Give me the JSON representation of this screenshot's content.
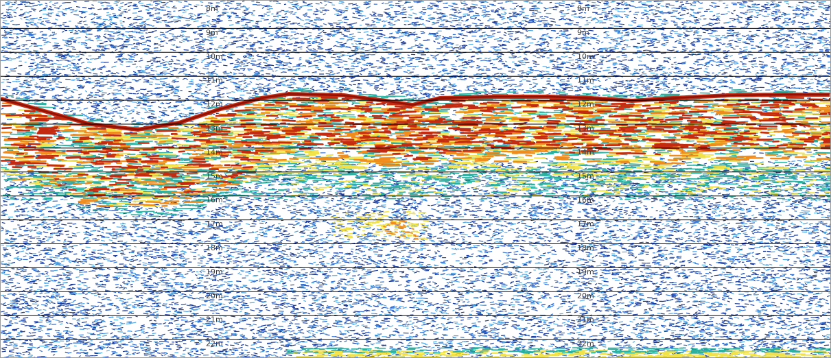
{
  "echogram": {
    "depth_lines": [
      {
        "left": "8m",
        "right": "8m"
      },
      {
        "left": "9m",
        "right": "9m"
      },
      {
        "left": "10m",
        "right": "10m"
      },
      {
        "left": "11m",
        "right": "11m"
      },
      {
        "left": "12m",
        "right": "12m"
      },
      {
        "left": "13m",
        "right": "13m"
      },
      {
        "left": "14m",
        "right": "14m"
      },
      {
        "left": "15m",
        "right": "15m"
      },
      {
        "left": "16m",
        "right": "16m"
      },
      {
        "left": "17m",
        "right": "17m"
      },
      {
        "left": "18m",
        "right": "18m"
      },
      {
        "left": "19m",
        "right": "19m"
      },
      {
        "left": "20m",
        "right": "20m"
      },
      {
        "left": "21m",
        "right": "21m"
      },
      {
        "left": "22m",
        "right": "22m"
      }
    ],
    "colors": {
      "background": "#ffffff",
      "noise_dark": "#1c3c9c",
      "noise_mid": "#2f6fd2",
      "noise_light": "#4fa7e6",
      "weak_echo": "#2cb0a0",
      "mid_echo": "#f2e24a",
      "strong_echo": "#f08c1c",
      "bottom_echo": "#c42a10",
      "bottom_core": "#8c1208",
      "grid_line": "#000000"
    }
  }
}
